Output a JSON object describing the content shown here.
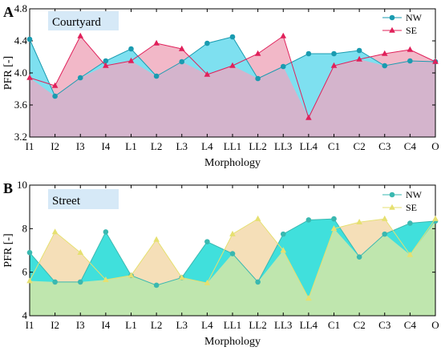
{
  "chart_data": [
    {
      "panel": "A",
      "type": "area",
      "title": "Courtyard",
      "title_bg": "#d6e9f7",
      "xlabel": "Morphology",
      "ylabel": "PFR [-]",
      "ylim": [
        3.2,
        4.8
      ],
      "yticks": [
        "3.2",
        "3.6",
        "4.0",
        "4.4",
        "4.8"
      ],
      "categories": [
        "I1",
        "I2",
        "I3",
        "I4",
        "L1",
        "L2",
        "L3",
        "L4",
        "LL1",
        "LL2",
        "LL3",
        "LL4",
        "C1",
        "C2",
        "C3",
        "C4",
        "O"
      ],
      "legend_position": "top-right",
      "series": [
        {
          "name": "NW",
          "marker": "circle",
          "line_color": "#1a9bb0",
          "fill_color": "#7ee0f0",
          "values": [
            4.42,
            3.71,
            3.94,
            4.15,
            4.3,
            3.96,
            4.14,
            4.37,
            4.45,
            3.93,
            4.08,
            4.24,
            4.24,
            4.28,
            4.09,
            4.15,
            4.14
          ]
        },
        {
          "name": "SE",
          "marker": "triangle",
          "line_color": "#e0205a",
          "fill_color": "#f2b8c8",
          "values": [
            3.94,
            3.84,
            4.46,
            4.09,
            4.15,
            4.37,
            4.3,
            3.98,
            4.09,
            4.24,
            4.46,
            3.44,
            4.09,
            4.17,
            4.24,
            4.29,
            4.14
          ]
        }
      ],
      "overlap_fill": "#d4b4cc"
    },
    {
      "panel": "B",
      "type": "area",
      "title": "Street",
      "title_bg": "#d6e9f7",
      "xlabel": "Morphology",
      "ylabel": "PFR [-]",
      "ylim": [
        4,
        10
      ],
      "yticks": [
        "4",
        "6",
        "8",
        "10"
      ],
      "categories": [
        "I1",
        "I2",
        "I3",
        "I4",
        "L1",
        "L2",
        "L3",
        "L4",
        "LL1",
        "LL2",
        "LL3",
        "LL4",
        "C1",
        "C2",
        "C3",
        "C4",
        "O"
      ],
      "legend_position": "top-right",
      "series": [
        {
          "name": "NW",
          "marker": "circle",
          "line_color": "#3ab8b0",
          "fill_color": "#40e0dc",
          "values": [
            6.9,
            5.55,
            5.55,
            7.85,
            5.85,
            5.4,
            5.75,
            7.4,
            6.85,
            5.55,
            7.75,
            8.4,
            8.45,
            6.7,
            7.75,
            8.25,
            8.35
          ]
        },
        {
          "name": "SE",
          "marker": "triangle",
          "line_color": "#e6e070",
          "fill_color": "#f5dfb8",
          "values": [
            5.6,
            7.85,
            6.9,
            5.65,
            5.85,
            7.5,
            5.75,
            5.5,
            7.75,
            8.45,
            7.0,
            4.8,
            8.0,
            8.3,
            8.45,
            6.8,
            8.45
          ]
        }
      ],
      "overlap_fill": "#bfe6ae"
    }
  ]
}
